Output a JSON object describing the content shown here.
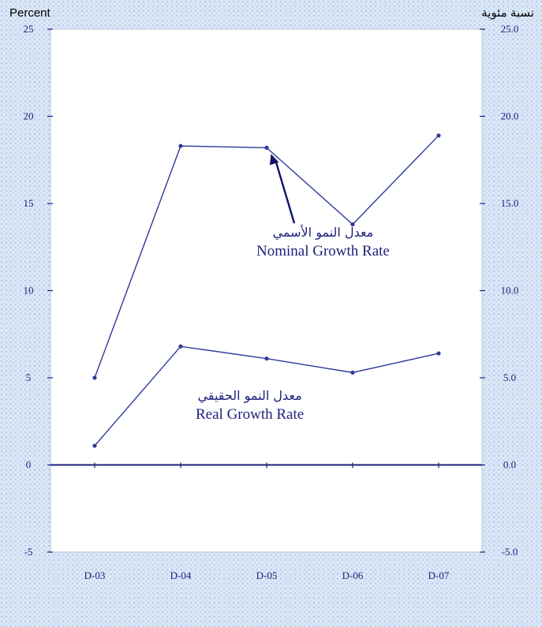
{
  "titles": {
    "left_axis_title": "Percent",
    "right_axis_title": "نسبة مئوية"
  },
  "annotations": {
    "nominal_ar": "معدل النمو الأسمي",
    "nominal_en": "Nominal Growth Rate",
    "real_ar": "معدل النمو الحقيقي",
    "real_en": "Real Growth Rate"
  },
  "colors": {
    "line": "#2d3a9c",
    "axis": "#1c1f7a",
    "arrow": "#0d1466",
    "plot_bg": "#ffffff"
  },
  "chart_data": {
    "type": "line",
    "categories": [
      "D-03",
      "D-04",
      "D-05",
      "D-06",
      "D-07"
    ],
    "series": [
      {
        "name": "Nominal Growth Rate",
        "values": [
          5.0,
          18.3,
          18.2,
          13.8,
          18.9
        ]
      },
      {
        "name": "Real Growth Rate",
        "values": [
          1.1,
          6.8,
          6.1,
          5.3,
          6.4
        ]
      }
    ],
    "ylim": [
      -5,
      25
    ],
    "left_ticks": [
      "25",
      "20",
      "15",
      "10",
      "5",
      "0",
      "-5"
    ],
    "right_ticks": [
      "25.0",
      "20.0",
      "15.0",
      "10.0",
      "5.0",
      "0.0",
      "-5.0"
    ],
    "grid": false,
    "legend": "none"
  }
}
